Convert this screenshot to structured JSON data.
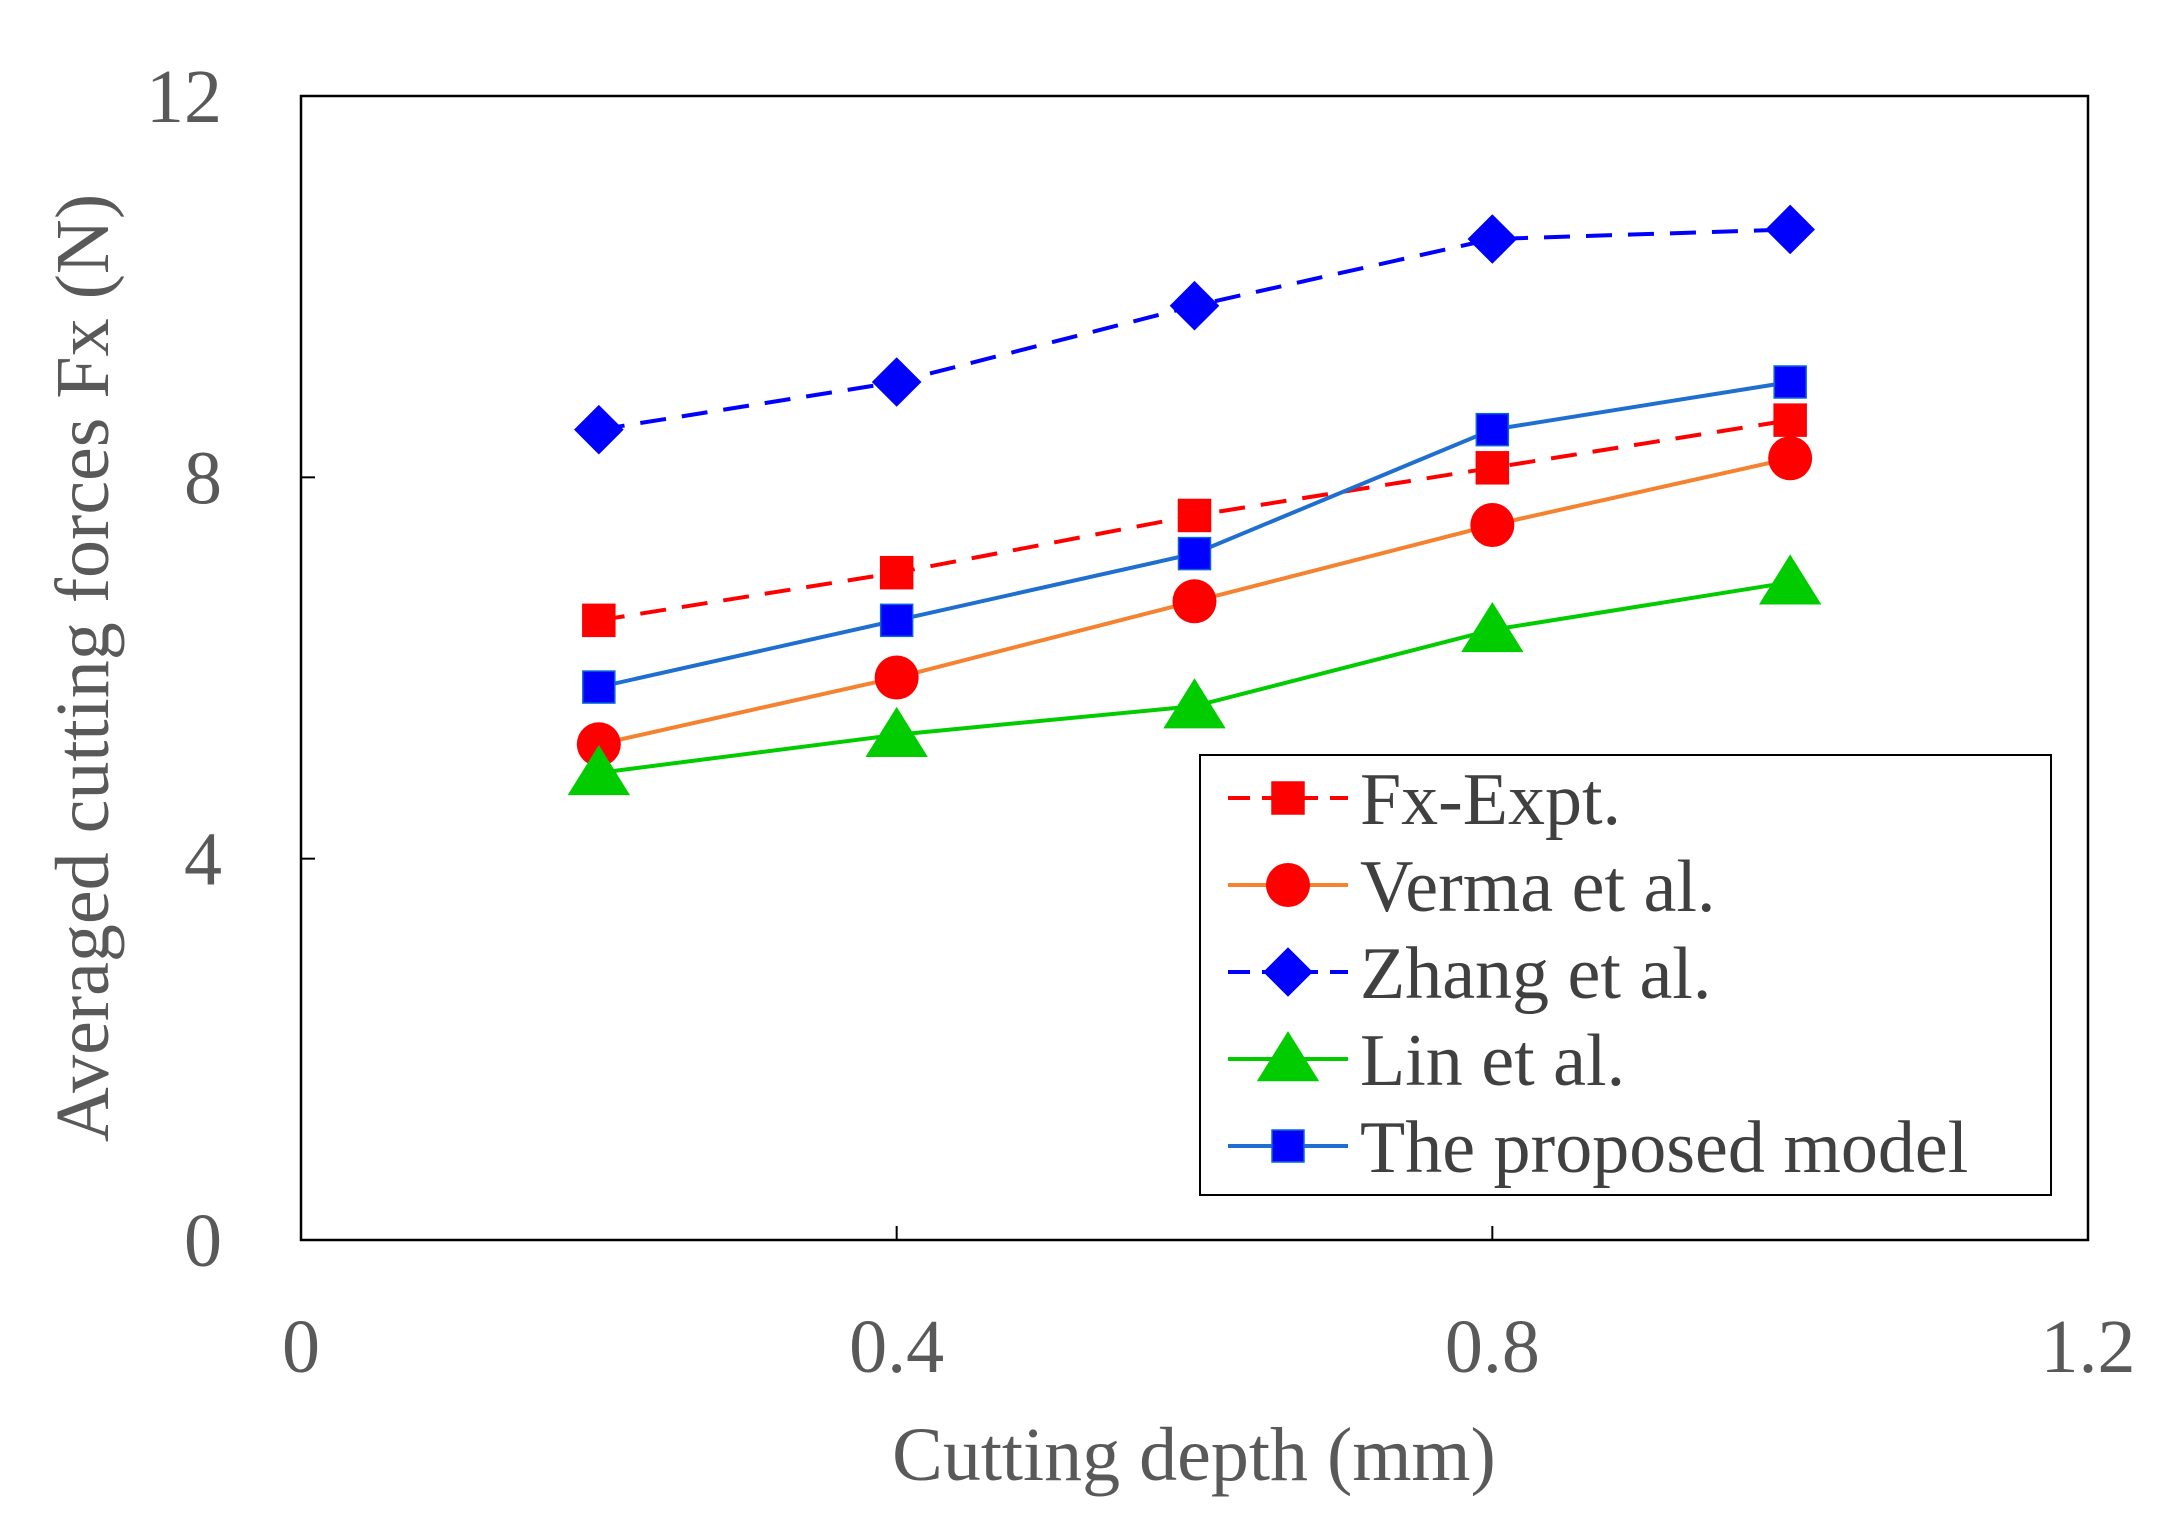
{
  "chart_data": {
    "type": "line",
    "title": "",
    "xlabel": "Cutting depth (mm)",
    "ylabel": "Averaged cutting forces Fx (N)",
    "xlim": [
      0,
      1.2
    ],
    "ylim": [
      0,
      12
    ],
    "xticks": [
      0,
      0.4,
      0.8,
      1.2
    ],
    "xtick_labels": [
      "0",
      "0.4",
      "0.8",
      "1.2"
    ],
    "yticks": [
      0,
      4,
      8,
      12
    ],
    "ytick_labels": [
      "0",
      "4",
      "8",
      "12"
    ],
    "legend_position": "bottom-right",
    "x": [
      0.2,
      0.4,
      0.6,
      0.8,
      1.0
    ],
    "series": [
      {
        "name": "Fx-Expt.",
        "values": [
          6.5,
          7.0,
          7.6,
          8.1,
          8.6
        ],
        "line_color": "#ff0000",
        "marker_color": "#ff0000",
        "marker": "square",
        "dash": "dashed"
      },
      {
        "name": "Verma et al.",
        "values": [
          5.2,
          5.9,
          6.7,
          7.5,
          8.2
        ],
        "line_color": "#f58230",
        "marker_color": "#ff0000",
        "marker": "circle",
        "dash": "solid"
      },
      {
        "name": "Zhang et al.",
        "values": [
          8.5,
          9.0,
          9.8,
          10.5,
          10.6
        ],
        "line_color": "#0000ff",
        "marker_color": "#0000ff",
        "marker": "diamond",
        "dash": "dashed"
      },
      {
        "name": "Lin et al.",
        "values": [
          4.9,
          5.3,
          5.6,
          6.4,
          6.9
        ],
        "line_color": "#00cc00",
        "marker_color": "#00cc00",
        "marker": "triangle",
        "dash": "solid"
      },
      {
        "name": "The proposed model",
        "values": [
          5.8,
          6.5,
          7.2,
          8.5,
          9.0
        ],
        "line_color": "#1f6fd1",
        "marker_color": "#0000ff",
        "marker": "square",
        "dash": "solid"
      }
    ]
  }
}
